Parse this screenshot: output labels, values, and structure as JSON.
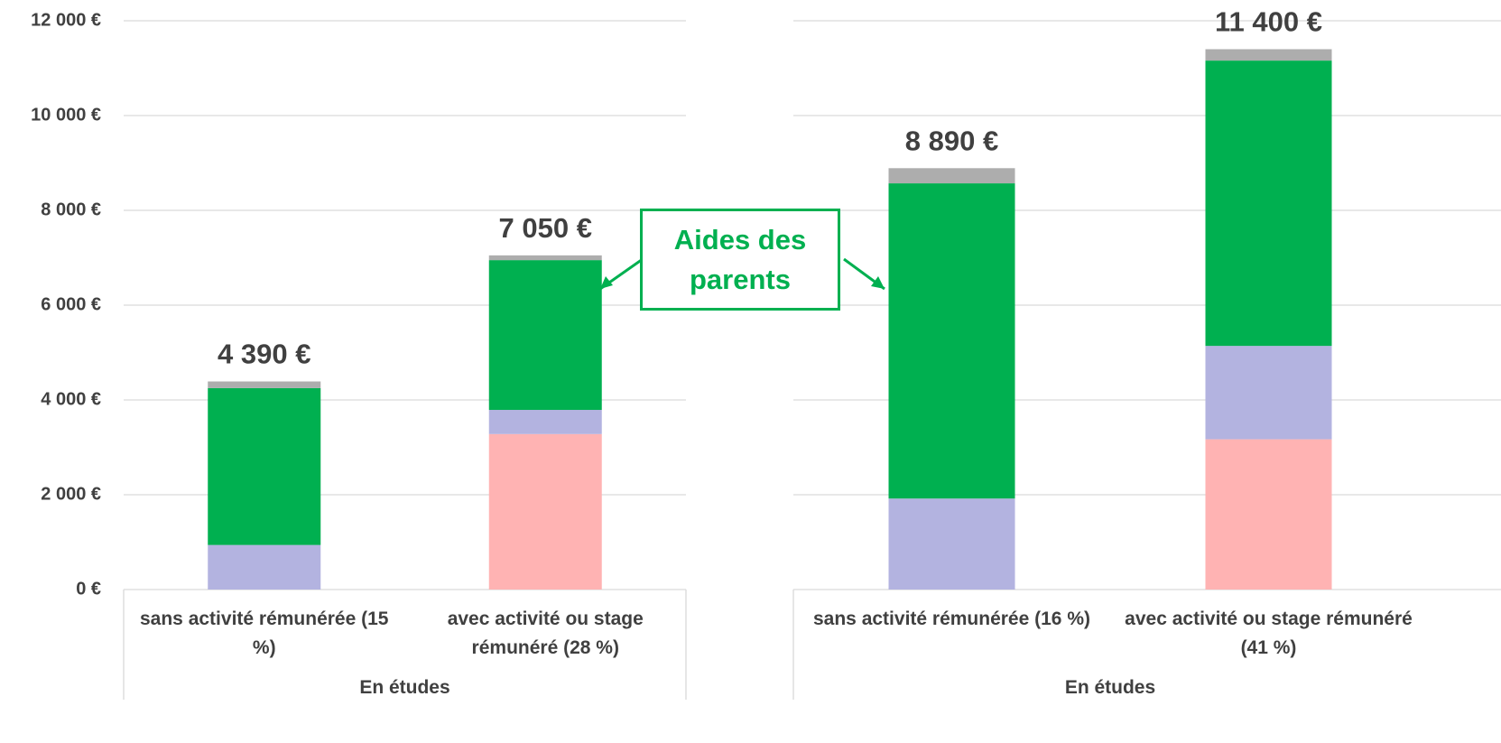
{
  "chart_data": [
    {
      "type": "stacked-bar",
      "group_label": "En études",
      "categories": [
        "sans activité rémunérée (15 %)",
        "avec activité ou stage rémunéré (28 %)"
      ],
      "series": [
        {
          "color": "#ffb3b3",
          "values": [
            0,
            3280
          ]
        },
        {
          "color": "#b3b3e0",
          "values": [
            940,
            510
          ]
        },
        {
          "color": "#00b050",
          "values": [
            3310,
            3160
          ]
        },
        {
          "color": "#adadad",
          "values": [
            140,
            100
          ]
        }
      ],
      "total_labels": [
        "4 390 €",
        "7 050 €"
      ],
      "ylim": [
        0,
        12000
      ],
      "yticks": [
        {
          "value": 0,
          "label": "0 €"
        },
        {
          "value": 2000,
          "label": "2 000 €"
        },
        {
          "value": 4000,
          "label": "4 000 €"
        },
        {
          "value": 6000,
          "label": "6 000 €"
        },
        {
          "value": 8000,
          "label": "8 000 €"
        },
        {
          "value": 10000,
          "label": "10 000 €"
        },
        {
          "value": 12000,
          "label": "12 000 €"
        }
      ],
      "grid": true
    },
    {
      "type": "stacked-bar",
      "group_label": "En études",
      "categories": [
        "sans activité rémunérée (16 %)",
        "avec activité ou stage rémunéré (41 %)"
      ],
      "series": [
        {
          "color": "#ffb3b3",
          "values": [
            0,
            3170
          ]
        },
        {
          "color": "#b3b3e0",
          "values": [
            1920,
            1970
          ]
        },
        {
          "color": "#00b050",
          "values": [
            6650,
            6020
          ]
        },
        {
          "color": "#adadad",
          "values": [
            320,
            240
          ]
        }
      ],
      "total_labels": [
        "8 890 €",
        "11 400 €"
      ],
      "ylim": [
        0,
        12000
      ],
      "yticks": [
        0,
        2000,
        4000,
        6000,
        8000,
        10000,
        12000
      ],
      "grid": true
    }
  ],
  "annotation": "Aides des parents"
}
